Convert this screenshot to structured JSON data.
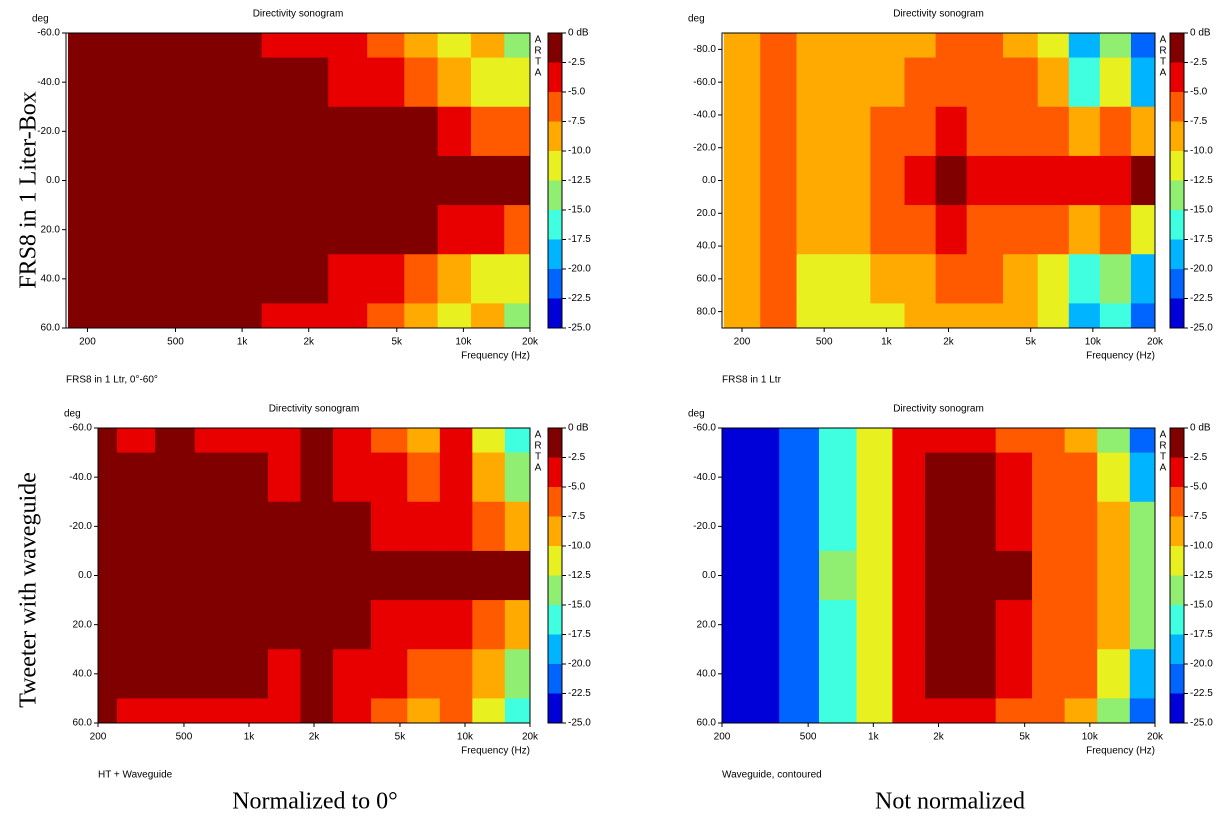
{
  "row_labels": [
    "FRS8 in 1 Liter-Box",
    "Tweeter with waveguide"
  ],
  "column_labels": [
    "Normalized to 0°",
    "Not normalized"
  ],
  "chart_data": [
    {
      "type": "heatmap",
      "title": "Directivity sonogram",
      "y_label": "deg",
      "x_label": "Frequency (Hz)",
      "brand": [
        "A",
        "R",
        "T",
        "A"
      ],
      "caption": "FRS8 in 1 Ltr, 0°-60°",
      "log_x": true,
      "xlim": [
        160,
        20000
      ],
      "ylim": [
        -60,
        60
      ],
      "xticks": [
        200,
        500,
        {
          "value": 1000,
          "label": "1k"
        },
        {
          "value": 2000,
          "label": "2k"
        },
        {
          "value": 5000,
          "label": "5k"
        },
        {
          "value": 10000,
          "label": "10k"
        },
        {
          "value": 20000,
          "label": "20k"
        }
      ],
      "yticks": [
        {
          "value": -60,
          "label": "-60.0"
        },
        {
          "value": -40,
          "label": "-40.0"
        },
        {
          "value": -20,
          "label": "-20.0"
        },
        {
          "value": 0,
          "label": "0.0"
        },
        {
          "value": 20,
          "label": "20.0"
        },
        {
          "value": 40,
          "label": "40.0"
        },
        {
          "value": 60,
          "label": "60.0"
        }
      ],
      "colorbar_ticks": [
        {
          "value": 0,
          "label": "0 dB"
        },
        -2.5,
        {
          "value": -5,
          "label": "-5.0"
        },
        -7.5,
        {
          "value": -10,
          "label": "-10.0"
        },
        -12.5,
        {
          "value": -15,
          "label": "-15.0"
        },
        -17.5,
        {
          "value": -20,
          "label": "-20.0"
        },
        -22.5,
        {
          "value": -25,
          "label": "-25.0"
        }
      ],
      "colors": [
        "#800000",
        "#e80000",
        "#ff5a00",
        "#ffaa00",
        "#e8f020",
        "#90ee70",
        "#40ffe0",
        "#00b4ff",
        "#0064ff",
        "#0000d8"
      ],
      "x": [
        200,
        300,
        450,
        700,
        1000,
        1500,
        2000,
        3000,
        4500,
        6500,
        9000,
        13000,
        18000
      ],
      "y": [
        -60,
        -40,
        -20,
        0,
        20,
        40,
        60
      ],
      "z": [
        [
          0,
          0,
          0,
          0,
          0,
          -3,
          -4,
          -3,
          -6,
          -9,
          -12,
          -9,
          -14
        ],
        [
          0,
          0,
          0,
          0,
          0,
          0,
          0,
          -3,
          -4,
          -6,
          -9,
          -12,
          -10
        ],
        [
          0,
          0,
          0,
          0,
          0,
          0,
          0,
          0,
          0,
          -1,
          -3,
          -5,
          -6
        ],
        [
          0,
          0,
          0,
          0,
          0,
          0,
          0,
          0,
          0,
          0,
          0,
          0,
          0
        ],
        [
          0,
          0,
          0,
          0,
          0,
          0,
          0,
          0,
          0,
          -1,
          -3,
          -4,
          -6
        ],
        [
          0,
          0,
          0,
          0,
          0,
          0,
          -1,
          -3,
          -4,
          -6,
          -9,
          -11,
          -10
        ],
        [
          0,
          0,
          0,
          0,
          -1,
          -3,
          -4,
          -3,
          -6,
          -9,
          -12,
          -9,
          -14
        ]
      ]
    },
    {
      "type": "heatmap",
      "title": "Directivity sonogram",
      "y_label": "deg",
      "x_label": "Frequency (Hz)",
      "brand": [
        "A",
        "R",
        "T",
        "A"
      ],
      "caption": "FRS8 in 1 Ltr",
      "log_x": true,
      "xlim": [
        160,
        20000
      ],
      "ylim": [
        -90,
        90
      ],
      "xticks": [
        200,
        500,
        {
          "value": 1000,
          "label": "1k"
        },
        {
          "value": 2000,
          "label": "2k"
        },
        {
          "value": 5000,
          "label": "5k"
        },
        {
          "value": 10000,
          "label": "10k"
        },
        {
          "value": 20000,
          "label": "20k"
        }
      ],
      "yticks": [
        {
          "value": -80,
          "label": "-80.0"
        },
        {
          "value": -60,
          "label": "-60.0"
        },
        {
          "value": -40,
          "label": "-40.0"
        },
        {
          "value": -20,
          "label": "-20.0"
        },
        {
          "value": 0,
          "label": "0.0"
        },
        {
          "value": 20,
          "label": "20.0"
        },
        {
          "value": 40,
          "label": "40.0"
        },
        {
          "value": 60,
          "label": "60.0"
        },
        {
          "value": 80,
          "label": "80.0"
        }
      ],
      "colorbar_ticks": [
        {
          "value": 0,
          "label": "0 dB"
        },
        -2.5,
        {
          "value": -5,
          "label": "-5.0"
        },
        -7.5,
        {
          "value": -10,
          "label": "-10.0"
        },
        -12.5,
        {
          "value": -15,
          "label": "-15.0"
        },
        -17.5,
        {
          "value": -20,
          "label": "-20.0"
        },
        -22.5,
        {
          "value": -25,
          "label": "-25.0"
        }
      ],
      "colors": [
        "#800000",
        "#e80000",
        "#ff5a00",
        "#ffaa00",
        "#e8f020",
        "#90ee70",
        "#40ffe0",
        "#00b4ff",
        "#0064ff",
        "#0000d8"
      ],
      "x": [
        200,
        300,
        450,
        700,
        1000,
        1500,
        2000,
        3000,
        4500,
        6500,
        9000,
        13000,
        18000
      ],
      "y": [
        -90,
        -60,
        -30,
        0,
        30,
        60,
        90
      ],
      "z": [
        [
          -8,
          -6,
          -9,
          -9,
          -8,
          -8,
          -7,
          -7,
          -8,
          -11,
          -18,
          -14,
          -20
        ],
        [
          -8,
          -6,
          -9,
          -9,
          -8,
          -7,
          -5,
          -6,
          -7,
          -9,
          -16,
          -12,
          -18
        ],
        [
          -8,
          -6,
          -9,
          -8,
          -7,
          -5,
          -3,
          -5,
          -5,
          -6,
          -8,
          -7,
          -9
        ],
        [
          -8,
          -6,
          -9,
          -8,
          -7,
          -4,
          -1,
          -4,
          -4,
          -4,
          -4,
          -3,
          -1
        ],
        [
          -8,
          -6,
          -9,
          -8,
          -7,
          -5,
          -3,
          -5,
          -5,
          -6,
          -8,
          -7,
          -10
        ],
        [
          -8,
          -6,
          -10,
          -10,
          -9,
          -8,
          -6,
          -7,
          -8,
          -10,
          -16,
          -13,
          -18
        ],
        [
          -8,
          -6,
          -10,
          -10,
          -10,
          -9,
          -8,
          -8,
          -9,
          -12,
          -19,
          -15,
          -21
        ]
      ]
    },
    {
      "type": "heatmap",
      "title": "Directivity sonogram",
      "y_label": "deg",
      "x_label": "Frequency (Hz)",
      "brand": [
        "A",
        "R",
        "T",
        "A"
      ],
      "caption": "HT + Waveguide",
      "log_x": true,
      "xlim": [
        200,
        20000
      ],
      "ylim": [
        -60,
        60
      ],
      "xticks": [
        200,
        500,
        {
          "value": 1000,
          "label": "1k"
        },
        {
          "value": 2000,
          "label": "2k"
        },
        {
          "value": 5000,
          "label": "5k"
        },
        {
          "value": 10000,
          "label": "10k"
        },
        {
          "value": 20000,
          "label": "20k"
        }
      ],
      "yticks": [
        {
          "value": -60,
          "label": "-60.0"
        },
        {
          "value": -40,
          "label": "-40.0"
        },
        {
          "value": -20,
          "label": "-20.0"
        },
        {
          "value": 0,
          "label": "0.0"
        },
        {
          "value": 20,
          "label": "20.0"
        },
        {
          "value": 40,
          "label": "40.0"
        },
        {
          "value": 60,
          "label": "60.0"
        }
      ],
      "colorbar_ticks": [
        {
          "value": 0,
          "label": "0 dB"
        },
        -2.5,
        {
          "value": -5,
          "label": "-5.0"
        },
        -7.5,
        {
          "value": -10,
          "label": "-10.0"
        },
        -12.5,
        {
          "value": -15,
          "label": "-15.0"
        },
        -17.5,
        {
          "value": -20,
          "label": "-20.0"
        },
        -22.5,
        {
          "value": -25,
          "label": "-25.0"
        }
      ],
      "colors": [
        "#800000",
        "#e80000",
        "#ff5a00",
        "#ffaa00",
        "#e8f020",
        "#90ee70",
        "#40ffe0",
        "#00b4ff",
        "#0064ff",
        "#0000d8"
      ],
      "x": [
        200,
        300,
        450,
        700,
        1000,
        1500,
        2000,
        3000,
        4500,
        6500,
        9000,
        13000,
        18000
      ],
      "y": [
        -60,
        -40,
        -20,
        0,
        20,
        40,
        60
      ],
      "z": [
        [
          -1,
          -3,
          -1,
          -3,
          -3,
          -3,
          -1,
          -3,
          -6,
          -9,
          -4,
          -12,
          -17
        ],
        [
          0,
          0,
          0,
          0,
          -1,
          -3,
          -1,
          -3,
          -4,
          -6,
          -4,
          -8,
          -14
        ],
        [
          0,
          0,
          0,
          0,
          0,
          0,
          0,
          -1,
          -3,
          -4,
          -3,
          -5,
          -9
        ],
        [
          0,
          0,
          0,
          0,
          0,
          0,
          0,
          0,
          0,
          0,
          0,
          0,
          0
        ],
        [
          0,
          0,
          0,
          0,
          0,
          0,
          0,
          -1,
          -3,
          -4,
          -3,
          -6,
          -9
        ],
        [
          0,
          0,
          0,
          0,
          -1,
          -3,
          -1,
          -3,
          -4,
          -6,
          -5,
          -8,
          -14
        ],
        [
          -1,
          -3,
          -3,
          -3,
          -3,
          -3,
          -1,
          -3,
          -6,
          -9,
          -5,
          -12,
          -17
        ]
      ]
    },
    {
      "type": "heatmap",
      "title": "Directivity sonogram",
      "y_label": "deg",
      "x_label": "Frequency (Hz)",
      "brand": [
        "A",
        "R",
        "T",
        "A"
      ],
      "caption": "Waveguide, contoured",
      "log_x": true,
      "xlim": [
        200,
        20000
      ],
      "ylim": [
        -60,
        60
      ],
      "xticks": [
        200,
        500,
        {
          "value": 1000,
          "label": "1k"
        },
        {
          "value": 2000,
          "label": "2k"
        },
        {
          "value": 5000,
          "label": "5k"
        },
        {
          "value": 10000,
          "label": "10k"
        },
        {
          "value": 20000,
          "label": "20k"
        }
      ],
      "yticks": [
        {
          "value": -60,
          "label": "-60.0"
        },
        {
          "value": -40,
          "label": "-40.0"
        },
        {
          "value": -20,
          "label": "-20.0"
        },
        {
          "value": 0,
          "label": "0.0"
        },
        {
          "value": 20,
          "label": "20.0"
        },
        {
          "value": 40,
          "label": "40.0"
        },
        {
          "value": 60,
          "label": "60.0"
        }
      ],
      "colorbar_ticks": [
        {
          "value": 0,
          "label": "0 dB"
        },
        -2.5,
        {
          "value": -5,
          "label": "-5.0"
        },
        -7.5,
        {
          "value": -10,
          "label": "-10.0"
        },
        -12.5,
        {
          "value": -15,
          "label": "-15.0"
        },
        -17.5,
        {
          "value": -20,
          "label": "-20.0"
        },
        -22.5,
        {
          "value": -25,
          "label": "-25.0"
        }
      ],
      "colors": [
        "#800000",
        "#e80000",
        "#ff5a00",
        "#ffaa00",
        "#e8f020",
        "#90ee70",
        "#40ffe0",
        "#00b4ff",
        "#0064ff",
        "#0000d8"
      ],
      "x": [
        200,
        300,
        450,
        700,
        1000,
        1500,
        2000,
        3000,
        4500,
        6500,
        9000,
        13000,
        18000
      ],
      "y": [
        -60,
        -40,
        -20,
        0,
        20,
        40,
        60
      ],
      "z": [
        [
          -24,
          -24,
          -21,
          -16,
          -12,
          -4,
          -3,
          -4,
          -5,
          -7,
          -9,
          -14,
          -21
        ],
        [
          -24,
          -24,
          -20,
          -15,
          -11,
          -3,
          -1,
          -2,
          -4,
          -6,
          -7,
          -12,
          -18
        ],
        [
          -24,
          -24,
          -20,
          -15,
          -11,
          -3,
          0,
          -1,
          -3,
          -5,
          -6,
          -8,
          -14
        ],
        [
          -24,
          -24,
          -20,
          -14,
          -11,
          -3,
          0,
          0,
          -1,
          -5,
          -6,
          -8,
          -14
        ],
        [
          -24,
          -24,
          -20,
          -15,
          -11,
          -3,
          0,
          -1,
          -3,
          -5,
          -6,
          -8,
          -14
        ],
        [
          -24,
          -24,
          -20,
          -15,
          -11,
          -3,
          -1,
          -2,
          -4,
          -6,
          -7,
          -12,
          -18
        ],
        [
          -24,
          -24,
          -21,
          -16,
          -12,
          -4,
          -3,
          -4,
          -5,
          -7,
          -9,
          -14,
          -21
        ]
      ]
    }
  ]
}
